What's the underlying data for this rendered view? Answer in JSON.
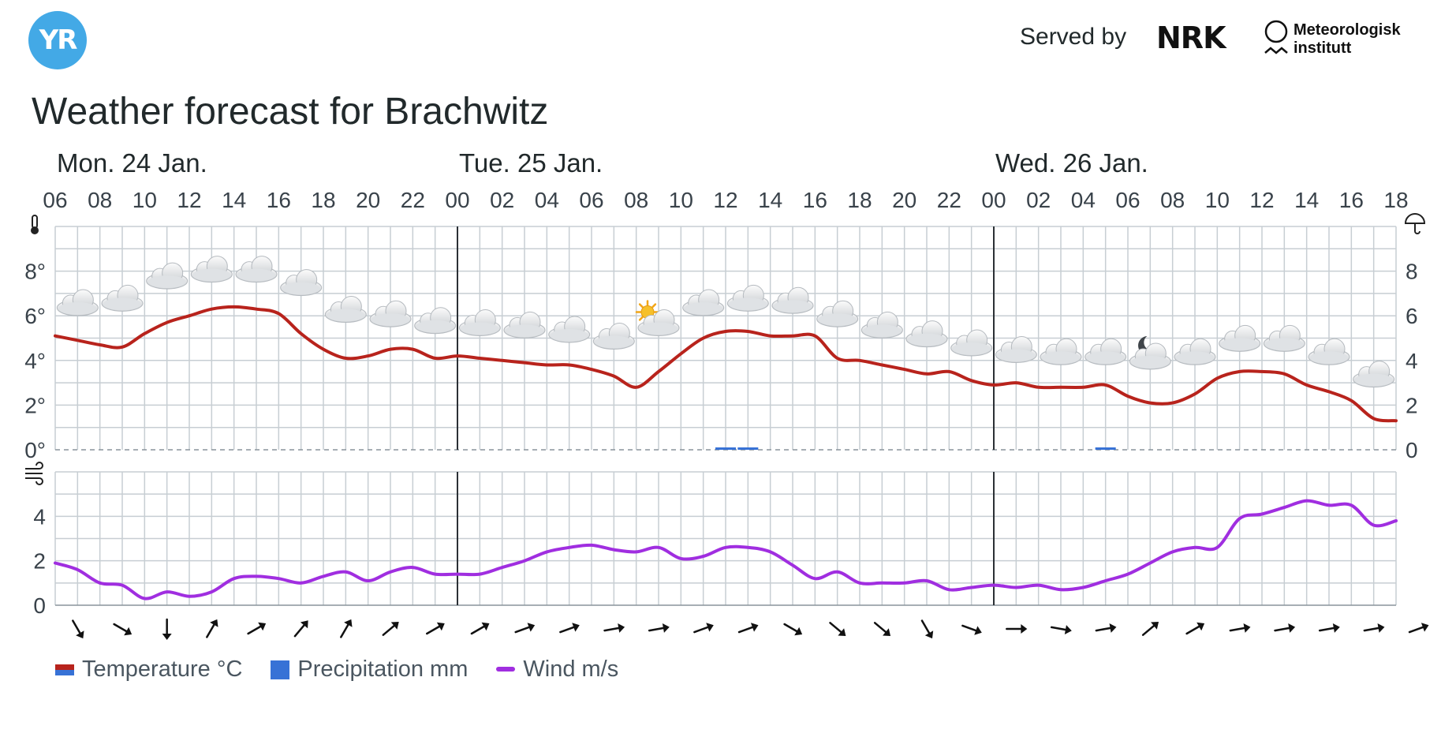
{
  "header": {
    "logo_text": "YR",
    "served_by": "Served by",
    "nrk_logo_text": "NRK",
    "met_line1": "Meteorologisk",
    "met_line2": "institutt",
    "title": "Weather forecast for Brachwitz"
  },
  "legend": [
    {
      "label": "Temperature °C",
      "color": "#b8231c"
    },
    {
      "label": "Precipitation mm",
      "color": "#3772d6"
    },
    {
      "label": "Wind m/s",
      "color": "#a02ee0"
    }
  ],
  "chart_data": [
    {
      "type": "line",
      "days": [
        {
          "label": "Mon. 24 Jan.",
          "start_hour": 0
        },
        {
          "label": "Tue. 25 Jan.",
          "start_hour": 18
        },
        {
          "label": "Wed. 26 Jan.",
          "start_hour": 42
        }
      ],
      "hour_labels": [
        "06",
        "08",
        "10",
        "12",
        "14",
        "16",
        "18",
        "20",
        "22",
        "00",
        "02",
        "04",
        "06",
        "08",
        "10",
        "12",
        "14",
        "16",
        "18",
        "20",
        "22",
        "00",
        "02",
        "04",
        "06",
        "08",
        "10",
        "12",
        "14",
        "16",
        "18"
      ],
      "y_ticks_left": [
        "0°",
        "2°",
        "4°",
        "6°",
        "8°"
      ],
      "y_ticks_right": [
        "0",
        "2",
        "4",
        "6",
        "8"
      ],
      "ylim": [
        0,
        10
      ],
      "series": [
        {
          "name": "Temperature °C",
          "color": "#b8231c",
          "values": [
            5.1,
            4.9,
            4.7,
            4.6,
            5.2,
            5.7,
            6.0,
            6.3,
            6.4,
            6.3,
            6.1,
            5.2,
            4.5,
            4.1,
            4.2,
            4.5,
            4.5,
            4.1,
            4.2,
            4.1,
            4.0,
            3.9,
            3.8,
            3.8,
            3.6,
            3.3,
            2.8,
            3.5,
            4.3,
            5.0,
            5.3,
            5.3,
            5.1,
            5.1,
            5.1,
            4.1,
            4.0,
            3.8,
            3.6,
            3.4,
            3.5,
            3.1,
            2.9,
            3.0,
            2.8,
            2.8,
            2.8,
            2.9,
            2.4,
            2.1,
            2.1,
            2.5,
            3.2,
            3.5,
            3.5,
            3.4,
            2.9,
            2.6,
            2.2,
            1.4,
            1.3
          ]
        },
        {
          "name": "Precipitation mm",
          "color": "#3772d6",
          "bars": [
            {
              "hour": 30,
              "value": 0.1
            },
            {
              "hour": 31,
              "value": 0.1
            },
            {
              "hour": 47,
              "value": 0.1
            }
          ]
        }
      ],
      "weather_symbols": [
        {
          "hour": 1,
          "temp": 6.5,
          "symbol": "cloudy"
        },
        {
          "hour": 3,
          "temp": 6.7,
          "symbol": "cloudy"
        },
        {
          "hour": 5,
          "temp": 7.7,
          "symbol": "cloudy"
        },
        {
          "hour": 7,
          "temp": 8.0,
          "symbol": "cloudy"
        },
        {
          "hour": 9,
          "temp": 8.0,
          "symbol": "cloudy"
        },
        {
          "hour": 11,
          "temp": 7.4,
          "symbol": "cloudy"
        },
        {
          "hour": 13,
          "temp": 6.2,
          "symbol": "cloudy"
        },
        {
          "hour": 15,
          "temp": 6.0,
          "symbol": "cloudy"
        },
        {
          "hour": 17,
          "temp": 5.7,
          "symbol": "cloudy"
        },
        {
          "hour": 19,
          "temp": 5.6,
          "symbol": "cloudy"
        },
        {
          "hour": 21,
          "temp": 5.5,
          "symbol": "cloudy"
        },
        {
          "hour": 23,
          "temp": 5.3,
          "symbol": "cloudy"
        },
        {
          "hour": 25,
          "temp": 5.0,
          "symbol": "cloudy"
        },
        {
          "hour": 27,
          "temp": 5.6,
          "symbol": "partly-cloudy-day"
        },
        {
          "hour": 29,
          "temp": 6.5,
          "symbol": "cloudy"
        },
        {
          "hour": 31,
          "temp": 6.7,
          "symbol": "cloudy"
        },
        {
          "hour": 33,
          "temp": 6.6,
          "symbol": "cloudy"
        },
        {
          "hour": 35,
          "temp": 6.0,
          "symbol": "cloudy"
        },
        {
          "hour": 37,
          "temp": 5.5,
          "symbol": "cloudy"
        },
        {
          "hour": 39,
          "temp": 5.1,
          "symbol": "cloudy"
        },
        {
          "hour": 41,
          "temp": 4.7,
          "symbol": "cloudy"
        },
        {
          "hour": 43,
          "temp": 4.4,
          "symbol": "cloudy"
        },
        {
          "hour": 45,
          "temp": 4.3,
          "symbol": "cloudy"
        },
        {
          "hour": 47,
          "temp": 4.3,
          "symbol": "cloudy"
        },
        {
          "hour": 49,
          "temp": 4.1,
          "symbol": "partly-cloudy-night"
        },
        {
          "hour": 51,
          "temp": 4.3,
          "symbol": "cloudy"
        },
        {
          "hour": 53,
          "temp": 4.9,
          "symbol": "cloudy"
        },
        {
          "hour": 55,
          "temp": 4.9,
          "symbol": "cloudy"
        },
        {
          "hour": 57,
          "temp": 4.3,
          "symbol": "cloudy"
        },
        {
          "hour": 59,
          "temp": 3.3,
          "symbol": "cloudy"
        }
      ]
    },
    {
      "type": "line",
      "y_ticks_left": [
        "0",
        "2",
        "4"
      ],
      "ylim": [
        0,
        6
      ],
      "series": [
        {
          "name": "Wind m/s",
          "color": "#a02ee0",
          "values": [
            1.9,
            1.6,
            1.0,
            0.9,
            0.3,
            0.6,
            0.4,
            0.6,
            1.2,
            1.3,
            1.2,
            1.0,
            1.3,
            1.5,
            1.1,
            1.5,
            1.7,
            1.4,
            1.4,
            1.4,
            1.7,
            2.0,
            2.4,
            2.6,
            2.7,
            2.5,
            2.4,
            2.6,
            2.1,
            2.2,
            2.6,
            2.6,
            2.4,
            1.8,
            1.2,
            1.5,
            1.0,
            1.0,
            1.0,
            1.1,
            0.7,
            0.8,
            0.9,
            0.8,
            0.9,
            0.7,
            0.8,
            1.1,
            1.4,
            1.9,
            2.4,
            2.6,
            2.6,
            3.9,
            4.1,
            4.4,
            4.7,
            4.5,
            4.5,
            3.6,
            3.8
          ]
        }
      ],
      "wind_directions_deg": [
        150,
        120,
        180,
        30,
        60,
        40,
        30,
        50,
        60,
        60,
        70,
        70,
        80,
        80,
        70,
        70,
        120,
        130,
        130,
        150,
        110,
        90,
        100,
        80,
        50,
        60,
        80,
        80,
        80,
        80,
        70
      ]
    }
  ]
}
